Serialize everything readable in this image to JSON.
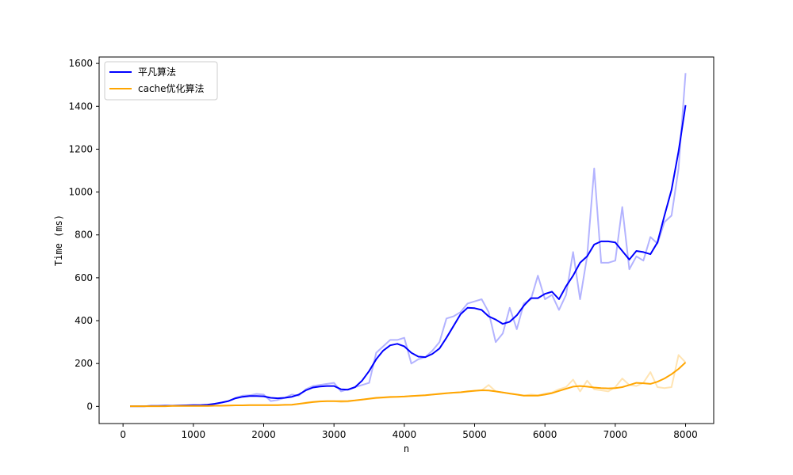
{
  "chart_data": {
    "type": "line",
    "title": "",
    "xlabel": "n",
    "ylabel": "Time (ms)",
    "xlim": [
      -340,
      8400
    ],
    "ylim": [
      -80,
      1630
    ],
    "xticks": [
      0,
      1000,
      2000,
      3000,
      4000,
      5000,
      6000,
      7000,
      8000
    ],
    "yticks": [
      0,
      200,
      400,
      600,
      800,
      1000,
      1200,
      1400,
      1600
    ],
    "grid": false,
    "legend_position": "top-left",
    "x": [
      100,
      200,
      300,
      400,
      500,
      600,
      700,
      800,
      900,
      1000,
      1100,
      1200,
      1300,
      1400,
      1500,
      1600,
      1700,
      1800,
      1900,
      2000,
      2100,
      2200,
      2300,
      2400,
      2500,
      2600,
      2700,
      2800,
      2900,
      3000,
      3100,
      3200,
      3300,
      3400,
      3500,
      3600,
      3700,
      3800,
      3900,
      4000,
      4100,
      4200,
      4300,
      4400,
      4500,
      4600,
      4700,
      4800,
      4900,
      5000,
      5100,
      5200,
      5300,
      5400,
      5500,
      5600,
      5700,
      5800,
      5900,
      6000,
      6100,
      6200,
      6300,
      6400,
      6500,
      6600,
      6700,
      6800,
      6900,
      7000,
      7100,
      7200,
      7300,
      7400,
      7500,
      7600,
      7700,
      7800,
      7900,
      8000
    ],
    "series": [
      {
        "name": "平凡算法",
        "color": "#0000ff",
        "raw_values": [
          1,
          1,
          1,
          2,
          2,
          3,
          3,
          4,
          5,
          6,
          5,
          8,
          12,
          18,
          25,
          40,
          50,
          52,
          58,
          55,
          25,
          30,
          40,
          55,
          50,
          80,
          95,
          100,
          105,
          110,
          70,
          80,
          90,
          100,
          110,
          250,
          280,
          310,
          310,
          320,
          200,
          220,
          230,
          260,
          300,
          410,
          420,
          440,
          480,
          490,
          500,
          440,
          300,
          340,
          460,
          360,
          480,
          500,
          610,
          500,
          520,
          450,
          520,
          720,
          500,
          700,
          1110,
          670,
          670,
          680,
          930,
          640,
          700,
          680,
          790,
          760,
          860,
          890,
          1110,
          1555
        ],
        "raw_color": "#b3b3ff",
        "smoothed_values": [
          1,
          1,
          1,
          2,
          2,
          3,
          3,
          4,
          5,
          6,
          6,
          8,
          12,
          18,
          25,
          38,
          45,
          48,
          48,
          47,
          40,
          38,
          40,
          45,
          55,
          75,
          88,
          93,
          95,
          95,
          80,
          78,
          90,
          120,
          165,
          220,
          260,
          285,
          292,
          280,
          250,
          232,
          230,
          245,
          270,
          320,
          375,
          430,
          460,
          458,
          450,
          420,
          405,
          385,
          395,
          425,
          470,
          505,
          505,
          525,
          535,
          500,
          560,
          610,
          670,
          700,
          755,
          770,
          770,
          765,
          725,
          685,
          725,
          720,
          710,
          765,
          890,
          1010,
          1190,
          1405
        ]
      },
      {
        "name": "cache优化算法",
        "color": "#ffa500",
        "raw_values": [
          1,
          1,
          1,
          1,
          1,
          1,
          2,
          2,
          2,
          2,
          2,
          2,
          3,
          3,
          4,
          5,
          5,
          6,
          6,
          6,
          6,
          6,
          7,
          8,
          12,
          18,
          22,
          24,
          25,
          25,
          20,
          22,
          28,
          32,
          35,
          38,
          40,
          42,
          44,
          46,
          48,
          50,
          52,
          55,
          60,
          62,
          64,
          66,
          68,
          72,
          75,
          100,
          70,
          65,
          60,
          55,
          50,
          55,
          52,
          60,
          65,
          80,
          90,
          125,
          70,
          120,
          80,
          75,
          70,
          90,
          130,
          100,
          95,
          110,
          160,
          90,
          85,
          90,
          240,
          205
        ],
        "raw_color": "#ffe4b3",
        "smoothed_values": [
          1,
          1,
          1,
          1,
          1,
          1,
          2,
          2,
          2,
          2,
          2,
          2,
          3,
          3,
          4,
          5,
          5,
          6,
          6,
          6,
          6,
          6,
          7,
          8,
          12,
          16,
          20,
          23,
          24,
          24,
          24,
          25,
          28,
          32,
          36,
          40,
          42,
          44,
          45,
          46,
          48,
          50,
          52,
          55,
          58,
          61,
          64,
          66,
          70,
          73,
          75,
          74,
          70,
          65,
          60,
          55,
          50,
          50,
          50,
          55,
          62,
          72,
          82,
          92,
          95,
          92,
          88,
          85,
          84,
          85,
          90,
          100,
          110,
          108,
          105,
          115,
          130,
          150,
          175,
          205
        ]
      }
    ]
  }
}
